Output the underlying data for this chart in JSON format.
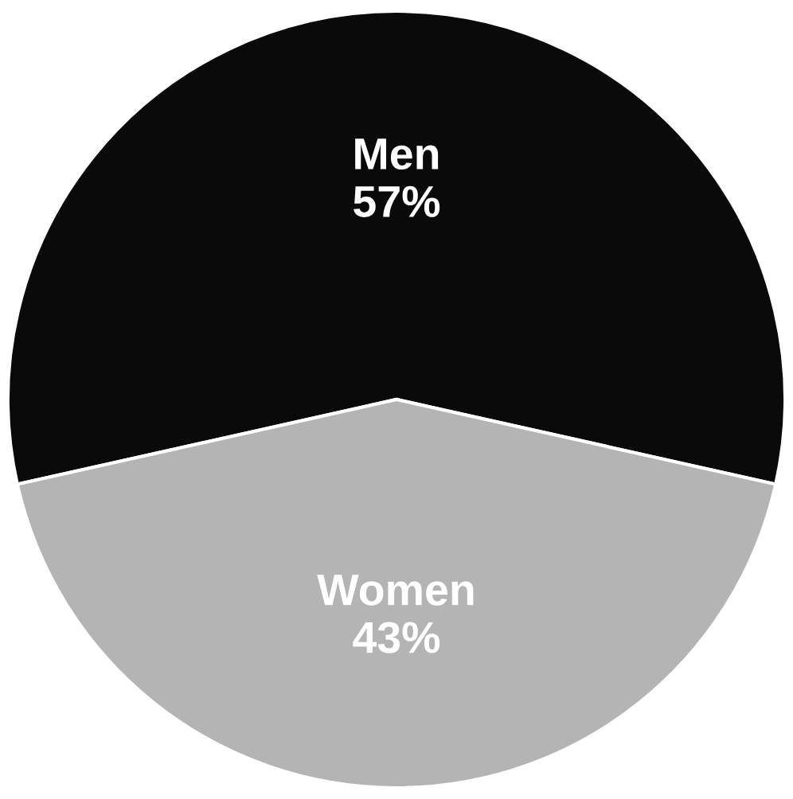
{
  "chart_data": {
    "type": "pie",
    "categories": [
      "Men",
      "Women"
    ],
    "values": [
      57,
      43
    ],
    "colors": [
      "#0a0a0a",
      "#b4b4b4"
    ],
    "value_labels": [
      "57%",
      "43%"
    ]
  }
}
